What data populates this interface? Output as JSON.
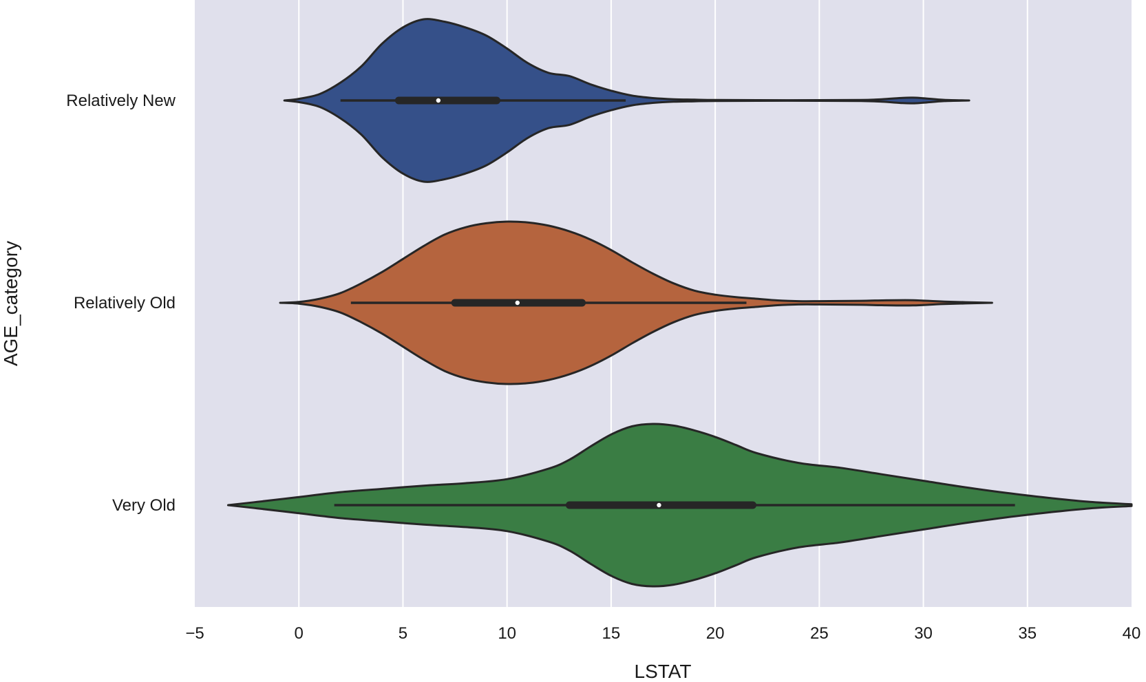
{
  "chart_data": {
    "type": "violin",
    "orientation": "horizontal",
    "title": "",
    "xlabel": "LSTAT",
    "ylabel": "AGE_category",
    "xlim": [
      -5,
      40
    ],
    "xticks": [
      -5,
      0,
      5,
      10,
      15,
      20,
      25,
      30,
      35,
      40
    ],
    "xtick_labels": [
      "−5",
      "0",
      "5",
      "10",
      "15",
      "20",
      "25",
      "30",
      "35",
      "40"
    ],
    "grid": true,
    "colors": {
      "background": "#e0e0ec",
      "grid": "#ffffff",
      "outline": "#262626"
    },
    "categories": [
      "Relatively New",
      "Relatively Old",
      "Very Old"
    ],
    "series": [
      {
        "name": "Relatively New",
        "color": "#355089",
        "whisker": [
          2.0,
          15.7
        ],
        "quartiles": [
          4.8,
          6.7,
          9.5
        ],
        "density_x": [
          -0.7,
          0,
          1,
          2,
          3,
          4,
          5,
          6,
          7,
          8,
          9,
          10,
          11,
          12,
          13,
          14,
          15,
          16,
          17,
          18,
          19,
          20,
          22,
          25,
          27,
          28,
          29,
          29.5,
          30,
          31,
          32.2
        ],
        "density_w": [
          0,
          0.02,
          0.08,
          0.22,
          0.42,
          0.7,
          0.9,
          1.0,
          0.97,
          0.9,
          0.8,
          0.64,
          0.46,
          0.34,
          0.3,
          0.2,
          0.12,
          0.06,
          0.03,
          0.015,
          0.01,
          0.006,
          0.004,
          0.004,
          0.006,
          0.015,
          0.032,
          0.035,
          0.028,
          0.008,
          0
        ]
      },
      {
        "name": "Relatively Old",
        "color": "#b5643e",
        "whisker": [
          2.5,
          21.5
        ],
        "quartiles": [
          7.5,
          10.5,
          13.6
        ],
        "density_x": [
          -0.9,
          0,
          1,
          2,
          3,
          4,
          5,
          6,
          7,
          8,
          9,
          10,
          11,
          12,
          13,
          14,
          15,
          16,
          17,
          18,
          19,
          20,
          21,
          22,
          23,
          24,
          25,
          27,
          28,
          29.5,
          31,
          33.3
        ],
        "density_w": [
          0,
          0.01,
          0.05,
          0.12,
          0.24,
          0.38,
          0.54,
          0.7,
          0.84,
          0.93,
          0.98,
          1.0,
          0.99,
          0.95,
          0.88,
          0.78,
          0.65,
          0.5,
          0.36,
          0.24,
          0.15,
          0.1,
          0.07,
          0.05,
          0.03,
          0.02,
          0.02,
          0.025,
          0.03,
          0.032,
          0.015,
          0
        ]
      },
      {
        "name": "Very Old",
        "color": "#3a7d44",
        "whisker": [
          1.7,
          34.4
        ],
        "quartiles": [
          13.0,
          17.3,
          21.8
        ],
        "density_x": [
          -3.4,
          -2,
          0,
          2,
          4,
          6,
          8,
          10,
          12,
          13,
          14,
          15,
          16,
          17,
          18,
          19,
          20,
          21,
          22,
          24,
          26,
          28,
          30,
          32,
          34,
          36,
          38,
          40
        ],
        "density_w": [
          0,
          0.04,
          0.1,
          0.16,
          0.2,
          0.24,
          0.27,
          0.32,
          0.45,
          0.56,
          0.72,
          0.87,
          0.97,
          1.0,
          0.98,
          0.92,
          0.84,
          0.74,
          0.64,
          0.52,
          0.46,
          0.38,
          0.3,
          0.22,
          0.15,
          0.09,
          0.04,
          0.01
        ]
      }
    ]
  }
}
